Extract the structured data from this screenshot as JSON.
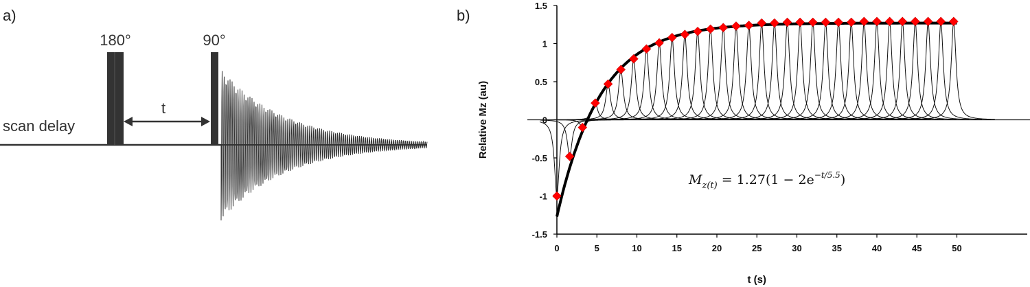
{
  "panel_a": {
    "label": "a)",
    "pulse_180_label": "180°",
    "pulse_90_label": "90°",
    "delay_label": "t",
    "scan_delay_label": "scan delay"
  },
  "panel_b": {
    "label": "b)",
    "equation": {
      "lhs_symbol": "M",
      "lhs_subscript": "z(t)",
      "rhs_main": "= 1.27(1 − 2e",
      "rhs_exponent": "−t/5.5",
      "rhs_close": ")"
    }
  },
  "chart_data": {
    "type": "scatter",
    "title": "",
    "xlabel": "t (s)",
    "ylabel": "Relative Mz (au)",
    "xlim": [
      0,
      57
    ],
    "ylim": [
      -1.5,
      1.5
    ],
    "x_ticks": [
      0,
      5,
      10,
      15,
      20,
      25,
      30,
      35,
      40,
      45,
      50
    ],
    "y_ticks": [
      -1.5,
      -1,
      -0.5,
      0,
      0.5,
      1,
      1.5
    ],
    "y_tick_labels": [
      "-1.5",
      "-1",
      "-0.5",
      "0",
      "0.5",
      "1",
      "1.5"
    ],
    "grid": false,
    "marker_color": "#ff0000",
    "fit_color": "#000000",
    "fit_model": {
      "M0": 1.27,
      "T1": 5.5
    },
    "series": [
      {
        "points": [
          [
            0,
            -1.0
          ],
          [
            1.6,
            -0.48
          ],
          [
            3.2,
            -0.1
          ],
          [
            4.8,
            0.22
          ],
          [
            6.4,
            0.47
          ],
          [
            8.0,
            0.66
          ],
          [
            9.6,
            0.8
          ],
          [
            11.2,
            0.93
          ],
          [
            12.8,
            1.01
          ],
          [
            14.4,
            1.08
          ],
          [
            16.0,
            1.12
          ],
          [
            17.6,
            1.16
          ],
          [
            19.2,
            1.19
          ],
          [
            20.8,
            1.21
          ],
          [
            22.4,
            1.23
          ],
          [
            24.0,
            1.24
          ],
          [
            25.6,
            1.27
          ],
          [
            27.2,
            1.27
          ],
          [
            28.8,
            1.28
          ],
          [
            30.4,
            1.28
          ],
          [
            32.0,
            1.28
          ],
          [
            33.6,
            1.28
          ],
          [
            35.2,
            1.28
          ],
          [
            36.8,
            1.28
          ],
          [
            38.4,
            1.29
          ],
          [
            40.0,
            1.29
          ],
          [
            41.6,
            1.29
          ],
          [
            43.2,
            1.29
          ],
          [
            44.8,
            1.29
          ],
          [
            46.4,
            1.29
          ],
          [
            48.0,
            1.29
          ],
          [
            49.6,
            1.29
          ]
        ]
      }
    ]
  }
}
